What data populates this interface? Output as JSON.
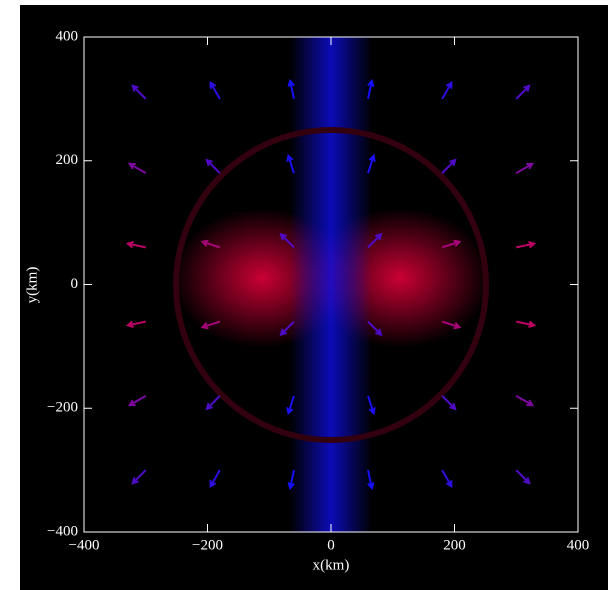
{
  "chart_data": {
    "type": "quiver",
    "x_label": "x(km)",
    "y_label": "y(km)",
    "xlim": [
      -400,
      400
    ],
    "ylim": [
      -400,
      400
    ],
    "xticks": [
      {
        "value": -400,
        "label": "−400"
      },
      {
        "value": -200,
        "label": "−200"
      },
      0,
      200,
      400
    ],
    "yticks": [
      {
        "value": -400,
        "label": "−400"
      },
      {
        "value": -200,
        "label": "−200"
      },
      0,
      200,
      400
    ],
    "colors": [
      "#e8003c",
      "#1010ff"
    ],
    "x": [
      -300,
      -180,
      -60,
      60,
      180,
      300,
      -300,
      -180,
      -60,
      60,
      180,
      300,
      -300,
      -180,
      -60,
      60,
      180,
      300,
      -300,
      -180,
      -60,
      60,
      180,
      300,
      -300,
      -180,
      -60,
      60,
      180,
      300,
      -300,
      -180,
      -60,
      60,
      180,
      300
    ],
    "y": [
      300,
      300,
      300,
      300,
      300,
      300,
      180,
      180,
      180,
      180,
      180,
      180,
      60,
      60,
      60,
      60,
      60,
      60,
      -60,
      -60,
      -60,
      -60,
      -60,
      -60,
      -180,
      -180,
      -180,
      -180,
      -180,
      -180,
      -300,
      -300,
      -300,
      -300,
      -300,
      -300
    ],
    "u": [
      -21,
      -15,
      -6,
      6,
      15,
      21,
      -26,
      -21,
      -9,
      9,
      21,
      26,
      -29,
      -28,
      -21,
      21,
      28,
      29,
      -29,
      -28,
      -21,
      21,
      28,
      29,
      -26,
      -21,
      -9,
      9,
      21,
      26,
      -21,
      -15,
      -6,
      6,
      15,
      21
    ],
    "v": [
      21,
      26,
      29,
      29,
      26,
      21,
      15,
      21,
      28,
      28,
      21,
      15,
      6,
      9,
      21,
      21,
      9,
      6,
      -6,
      -9,
      -21,
      -21,
      -9,
      -6,
      -15,
      -21,
      -28,
      -28,
      -21,
      -15,
      -21,
      -26,
      -29,
      -29,
      -26,
      -21
    ]
  }
}
